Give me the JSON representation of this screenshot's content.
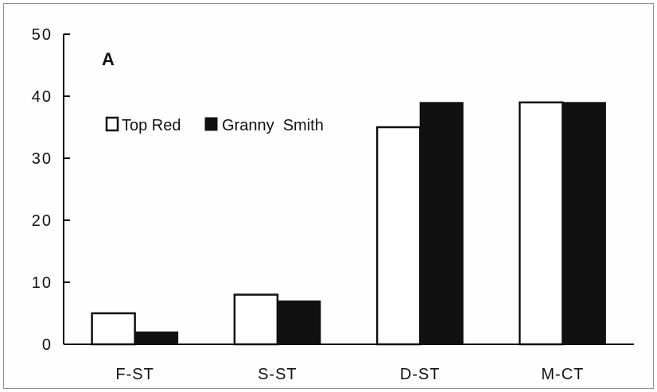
{
  "chart_data": {
    "type": "bar",
    "panel_label": "A",
    "categories": [
      "F-ST",
      "S-ST",
      "D-ST",
      "M-CT"
    ],
    "series": [
      {
        "name": "Top Red",
        "values": [
          5,
          8,
          35,
          39
        ],
        "color": "#ffffff"
      },
      {
        "name": "Granny  Smith",
        "values": [
          2,
          7,
          39,
          39
        ],
        "color": "#111111"
      }
    ],
    "ylim": [
      0,
      50
    ],
    "yticks": [
      0,
      10,
      20,
      30,
      40,
      50
    ],
    "grid": false,
    "legend_position": "top-left",
    "title": "",
    "xlabel": "",
    "ylabel": ""
  }
}
